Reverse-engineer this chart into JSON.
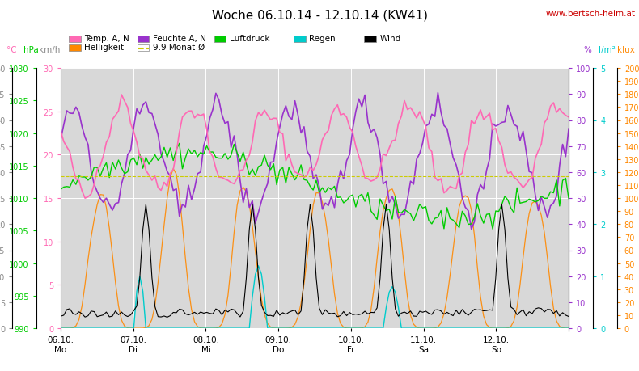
{
  "title": "Woche 06.10.14 - 12.10.14 (KW41)",
  "watermark": "www.bertsch-heim.at",
  "bg_color": "#ffffff",
  "plot_bg_color": "#d8d8d8",
  "temp_min": 0.0,
  "temp_max": 30.0,
  "hpa_min": 990,
  "hpa_max": 1030,
  "kmh_min": 0,
  "kmh_max": 50,
  "pct_min": 0,
  "pct_max": 100,
  "rain_min": 0.0,
  "rain_max": 5.0,
  "klux_min": 0,
  "klux_max": 200,
  "temp_color": "#ff69b4",
  "hpa_color": "#00cc00",
  "kmh_color": "#888888",
  "pct_color": "#9933cc",
  "rain_color": "#00cccc",
  "klux_color": "#ff8800",
  "wind_color": "#000000",
  "mean_color": "#cccc00",
  "title_fontsize": 11,
  "watermark_color": "#cc0000",
  "x_tick_labels": [
    "06.10.\nMo",
    "07.10.\nDi",
    "08.10.\nMi",
    "09.10.\nDo",
    "10.10.\nFr",
    "11.10.\nSa",
    "12.10.\nSo",
    ""
  ],
  "legend_row1": [
    {
      "label": "Temp. A, N",
      "color": "#ff69b4",
      "patch": true
    },
    {
      "label": "Feuchte A, N",
      "color": "#9933cc",
      "patch": true
    },
    {
      "label": "Luftdruck",
      "color": "#00cc00",
      "patch": true
    },
    {
      "label": "Regen",
      "color": "#00cccc",
      "patch": true
    },
    {
      "label": "Wind",
      "color": "#000000",
      "patch": true
    }
  ],
  "legend_row2": [
    {
      "label": "Helligkeit",
      "color": "#ff8800",
      "patch": true
    },
    {
      "label": "9.9 Monat-Ø",
      "color": "#cccc00",
      "patch": false,
      "dashed": true
    }
  ]
}
